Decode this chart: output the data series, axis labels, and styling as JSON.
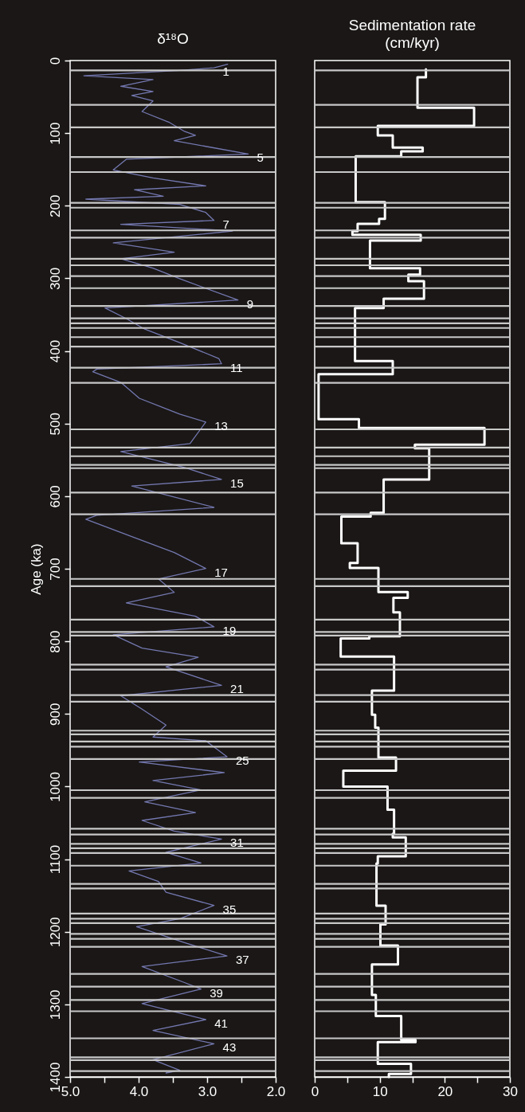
{
  "chart_data": [
    {
      "type": "line",
      "title": "δ¹⁸O",
      "ylabel": "Age (ka)",
      "orientation": "horizontal",
      "xlim": [
        5,
        2
      ],
      "xticks": [
        {
          "value": 5,
          "label": "5.0"
        },
        {
          "value": 4.5,
          "label": null
        },
        {
          "value": 4,
          "label": "4.0"
        },
        {
          "value": 3.5,
          "label": null
        },
        {
          "value": 3,
          "label": "3.0"
        },
        {
          "value": 2.5,
          "label": null
        },
        {
          "value": 2,
          "label": "2.0"
        }
      ],
      "ylim": [
        1400,
        0
      ],
      "yticks": [
        0,
        100,
        200,
        300,
        400,
        500,
        600,
        700,
        800,
        900,
        1000,
        1100,
        1200,
        1300,
        1400
      ],
      "marker": "none",
      "series": [
        {
          "color": "#7478b0",
          "x": [
            5,
            10,
            13.5,
            20.9,
            26.3,
            35.4,
            42.7,
            48.2,
            55.6,
            70.2,
            84.8,
            97.6,
            103,
            110.5,
            119.6,
            128.8,
            136,
            150.7,
            161.7,
            172.6,
            178,
            187,
            190.9,
            198.2,
            209.2,
            220.2,
            225.6,
            234.8,
            251.2,
            264,
            273,
            286,
            300.6,
            329.9,
            340.9,
            355.5,
            370,
            388.5,
            410.4,
            417.7,
            425,
            428.7,
            443.3,
            465.2,
            487,
            498,
            527.7,
            538.6,
            560.6,
            577,
            586,
            615.5,
            626.4,
            631.9,
            655.7,
            677.6,
            699.6,
            714,
            732.5,
            747,
            765.4,
            780,
            791,
            809.3,
            822,
            835,
            860.6,
            875,
            893.4,
            915.3,
            931.8,
            937,
            959,
            966.2,
            980.8,
            991.8,
            1004.6,
            1021,
            1035.8,
            1046.7,
            1061.4,
            1072.4,
            1090.6,
            1105.3,
            1116.3,
            1130.9,
            1145.5,
            1163.8,
            1182,
            1193,
            1215,
            1233.3,
            1248,
            1270,
            1279,
            1299,
            1321,
            1336,
            1354.3,
            1376.2,
            1390.9,
            1394.5
          ],
          "values": [
            2.7,
            2.9,
            3.4,
            4.8,
            3.79,
            4.26,
            3.79,
            4.1,
            3.79,
            3.95,
            3.56,
            3.33,
            3.17,
            3.48,
            2.94,
            2.4,
            4.18,
            4.37,
            3.79,
            3.02,
            4.06,
            3.64,
            4.77,
            3.4,
            3.02,
            2.9,
            4.26,
            2.63,
            4.37,
            3.48,
            4.26,
            3.79,
            3.4,
            2.55,
            4.49,
            4.18,
            3.91,
            3.4,
            2.83,
            2.79,
            4.61,
            4.67,
            4.26,
            3.99,
            3.4,
            3.02,
            3.25,
            4.26,
            3.33,
            2.79,
            4.1,
            2.9,
            4.61,
            4.77,
            4.1,
            3.48,
            3.02,
            3.71,
            3.48,
            4.18,
            3.17,
            2.9,
            4.37,
            3.95,
            3.13,
            3.6,
            2.79,
            4.26,
            3.95,
            3.6,
            3.79,
            3.02,
            2.71,
            3.99,
            2.75,
            3.79,
            3.09,
            3.91,
            3.17,
            3.95,
            3.48,
            2.79,
            3.6,
            3.09,
            4.14,
            3.71,
            3.6,
            2.9,
            3.4,
            4.03,
            3.33,
            2.71,
            3.95,
            3.33,
            3.09,
            3.95,
            3.02,
            3.79,
            2.9,
            3.79,
            3.4,
            3.6
          ]
        }
      ],
      "annotations": [
        {
          "text": "1",
          "x": 2.9,
          "y": 10
        },
        {
          "text": "5",
          "x": 2.4,
          "y": 128.8
        },
        {
          "text": "7",
          "x": 2.9,
          "y": 220.2
        },
        {
          "text": "9",
          "x": 2.55,
          "y": 329.9
        },
        {
          "text": "11",
          "x": 2.79,
          "y": 417.7
        },
        {
          "text": "13",
          "x": 3.02,
          "y": 498
        },
        {
          "text": "15",
          "x": 2.79,
          "y": 577
        },
        {
          "text": "17",
          "x": 3.02,
          "y": 699.6
        },
        {
          "text": "19",
          "x": 2.9,
          "y": 780
        },
        {
          "text": "21",
          "x": 2.79,
          "y": 860.6
        },
        {
          "text": "25",
          "x": 2.71,
          "y": 959
        },
        {
          "text": "31",
          "x": 2.79,
          "y": 1072.4
        },
        {
          "text": "35",
          "x": 2.9,
          "y": 1163.8
        },
        {
          "text": "37",
          "x": 2.71,
          "y": 1233.3
        },
        {
          "text": "39",
          "x": 3.09,
          "y": 1279
        },
        {
          "text": "41",
          "x": 3.02,
          "y": 1321
        },
        {
          "text": "43",
          "x": 2.9,
          "y": 1354.3
        }
      ],
      "ref_lines": [
        {
          "axis": "y",
          "value": 13.5,
          "color": "#c8c8c8"
        },
        {
          "axis": "y",
          "value": 61,
          "color": "#c8c8c8"
        },
        {
          "axis": "y",
          "value": 92,
          "color": "#c8c8c8"
        },
        {
          "axis": "y",
          "value": 133,
          "color": "#c8c8c8"
        },
        {
          "axis": "y",
          "value": 153.6,
          "color": "#c8c8c8"
        },
        {
          "axis": "y",
          "value": 196,
          "color": "#c8c8c8"
        },
        {
          "axis": "y",
          "value": 202.7,
          "color": "#c8c8c8"
        },
        {
          "axis": "y",
          "value": 234,
          "color": "#c8c8c8"
        },
        {
          "axis": "y",
          "value": 244,
          "color": "#c8c8c8"
        },
        {
          "axis": "y",
          "value": 273,
          "color": "#c8c8c8"
        },
        {
          "axis": "y",
          "value": 282,
          "color": "#c8c8c8"
        },
        {
          "axis": "y",
          "value": 297,
          "color": "#c8c8c8"
        },
        {
          "axis": "y",
          "value": 313.5,
          "color": "#c8c8c8"
        },
        {
          "axis": "y",
          "value": 338,
          "color": "#c8c8c8"
        },
        {
          "axis": "y",
          "value": 355,
          "color": "#c8c8c8"
        },
        {
          "axis": "y",
          "value": 362,
          "color": "#c8c8c8"
        },
        {
          "axis": "y",
          "value": 368.4,
          "color": "#c8c8c8"
        },
        {
          "axis": "y",
          "value": 381,
          "color": "#c8c8c8"
        },
        {
          "axis": "y",
          "value": 394,
          "color": "#c8c8c8"
        },
        {
          "axis": "y",
          "value": 423,
          "color": "#c8c8c8"
        },
        {
          "axis": "y",
          "value": 444,
          "color": "#c8c8c8"
        },
        {
          "axis": "y",
          "value": 508,
          "color": "#c8c8c8"
        },
        {
          "axis": "y",
          "value": 533,
          "color": "#c8c8c8"
        },
        {
          "axis": "y",
          "value": 545,
          "color": "#c8c8c8"
        },
        {
          "axis": "y",
          "value": 557,
          "color": "#c8c8c8"
        },
        {
          "axis": "y",
          "value": 561.5,
          "color": "#c8c8c8"
        },
        {
          "axis": "y",
          "value": 595,
          "color": "#c8c8c8"
        },
        {
          "axis": "y",
          "value": 625,
          "color": "#c8c8c8"
        },
        {
          "axis": "y",
          "value": 714,
          "color": "#c8c8c8"
        },
        {
          "axis": "y",
          "value": 724,
          "color": "#c8c8c8"
        },
        {
          "axis": "y",
          "value": 770,
          "color": "#c8c8c8"
        },
        {
          "axis": "y",
          "value": 787,
          "color": "#c8c8c8"
        },
        {
          "axis": "y",
          "value": 792,
          "color": "#c8c8c8"
        },
        {
          "axis": "y",
          "value": 832,
          "color": "#c8c8c8"
        },
        {
          "axis": "y",
          "value": 839,
          "color": "#c8c8c8"
        },
        {
          "axis": "y",
          "value": 874,
          "color": "#c8c8c8"
        },
        {
          "axis": "y",
          "value": 883,
          "color": "#c8c8c8"
        },
        {
          "axis": "y",
          "value": 923,
          "color": "#c8c8c8"
        },
        {
          "axis": "y",
          "value": 928,
          "color": "#c8c8c8"
        },
        {
          "axis": "y",
          "value": 938,
          "color": "#c8c8c8"
        },
        {
          "axis": "y",
          "value": 945,
          "color": "#c8c8c8"
        },
        {
          "axis": "y",
          "value": 962,
          "color": "#c8c8c8"
        },
        {
          "axis": "y",
          "value": 1005,
          "color": "#c8c8c8"
        },
        {
          "axis": "y",
          "value": 1015.5,
          "color": "#c8c8c8"
        },
        {
          "axis": "y",
          "value": 1058,
          "color": "#c8c8c8"
        },
        {
          "axis": "y",
          "value": 1066,
          "color": "#c8c8c8"
        },
        {
          "axis": "y",
          "value": 1079,
          "color": "#c8c8c8"
        },
        {
          "axis": "y",
          "value": 1085,
          "color": "#c8c8c8"
        },
        {
          "axis": "y",
          "value": 1091.6,
          "color": "#c8c8c8"
        },
        {
          "axis": "y",
          "value": 1109,
          "color": "#c8c8c8"
        },
        {
          "axis": "y",
          "value": 1134,
          "color": "#c8c8c8"
        },
        {
          "axis": "y",
          "value": 1140.4,
          "color": "#c8c8c8"
        },
        {
          "axis": "y",
          "value": 1175,
          "color": "#c8c8c8"
        },
        {
          "axis": "y",
          "value": 1182,
          "color": "#c8c8c8"
        },
        {
          "axis": "y",
          "value": 1188,
          "color": "#c8c8c8"
        },
        {
          "axis": "y",
          "value": 1203,
          "color": "#c8c8c8"
        },
        {
          "axis": "y",
          "value": 1209.7,
          "color": "#c8c8c8"
        },
        {
          "axis": "y",
          "value": 1220.7,
          "color": "#c8c8c8"
        },
        {
          "axis": "y",
          "value": 1258,
          "color": "#c8c8c8"
        },
        {
          "axis": "y",
          "value": 1275.6,
          "color": "#c8c8c8"
        },
        {
          "axis": "y",
          "value": 1294,
          "color": "#c8c8c8"
        },
        {
          "axis": "y",
          "value": 1309.5,
          "color": "#c8c8c8"
        },
        {
          "axis": "y",
          "value": 1346.8,
          "color": "#c8c8c8"
        },
        {
          "axis": "y",
          "value": 1373,
          "color": "#c8c8c8"
        },
        {
          "axis": "y",
          "value": 1376.9,
          "color": "#c8c8c8"
        },
        {
          "axis": "y",
          "value": 1392,
          "color": "#c8c8c8"
        }
      ]
    },
    {
      "type": "step",
      "title": "Sedimentation rate (cm/kyr)",
      "orientation": "horizontal",
      "xlim": [
        0,
        30
      ],
      "xticks": [
        0,
        {
          "value": 5,
          "label": null
        },
        10,
        {
          "value": 15,
          "label": null
        },
        20,
        {
          "value": 25,
          "label": null
        },
        30
      ],
      "ylim": [
        1400,
        0
      ],
      "tick_labels": "x",
      "marker": "none",
      "series": [
        {
          "color": "#ffffff",
          "x": [
            12,
            23,
            65,
            90,
            103,
            120,
            125,
            132,
            195,
            218,
            225,
            235,
            240,
            248,
            286,
            295,
            304,
            328,
            341,
            414,
            432,
            494,
            506,
            529,
            534,
            577,
            623,
            628,
            665,
            692,
            699,
            732,
            740,
            760,
            793,
            796,
            821,
            868,
            901,
            919,
            960,
            978,
            1000,
            1032,
            1065,
            1070,
            1096,
            1106,
            1164,
            1190,
            1219,
            1245,
            1287,
            1316,
            1349,
            1352,
            1382,
            1396,
            1400
          ],
          "values": [
            17.1,
            15.8,
            24.5,
            9.7,
            12,
            16.6,
            13.3,
            6.3,
            10.8,
            9.9,
            6.6,
            5.8,
            16.3,
            8.5,
            16.2,
            14.4,
            16.8,
            10.6,
            6.2,
            12,
            0.6,
            6.8,
            26.1,
            15.4,
            17.6,
            10.6,
            8.6,
            4.1,
            6.6,
            5.4,
            9.8,
            14.3,
            12.1,
            13.1,
            8.4,
            4,
            12.2,
            8.8,
            9.3,
            9.8,
            12.5,
            4.4,
            11.2,
            12.2,
            12,
            14,
            9.7,
            9.5,
            10.9,
            10.1,
            12.8,
            8.8,
            9.4,
            13.3,
            15.5,
            9.7,
            14.8,
            11.4,
            11.4
          ]
        }
      ],
      "ref_lines": [
        {
          "axis": "y",
          "value": 13.5,
          "color": "#c8c8c8"
        },
        {
          "axis": "y",
          "value": 61,
          "color": "#c8c8c8"
        },
        {
          "axis": "y",
          "value": 92,
          "color": "#c8c8c8"
        },
        {
          "axis": "y",
          "value": 133,
          "color": "#c8c8c8"
        },
        {
          "axis": "y",
          "value": 153.6,
          "color": "#c8c8c8"
        },
        {
          "axis": "y",
          "value": 196,
          "color": "#c8c8c8"
        },
        {
          "axis": "y",
          "value": 202.7,
          "color": "#c8c8c8"
        },
        {
          "axis": "y",
          "value": 234,
          "color": "#c8c8c8"
        },
        {
          "axis": "y",
          "value": 244,
          "color": "#c8c8c8"
        },
        {
          "axis": "y",
          "value": 273,
          "color": "#c8c8c8"
        },
        {
          "axis": "y",
          "value": 282,
          "color": "#c8c8c8"
        },
        {
          "axis": "y",
          "value": 297,
          "color": "#c8c8c8"
        },
        {
          "axis": "y",
          "value": 313.5,
          "color": "#c8c8c8"
        },
        {
          "axis": "y",
          "value": 338,
          "color": "#c8c8c8"
        },
        {
          "axis": "y",
          "value": 355,
          "color": "#c8c8c8"
        },
        {
          "axis": "y",
          "value": 362,
          "color": "#c8c8c8"
        },
        {
          "axis": "y",
          "value": 368.4,
          "color": "#c8c8c8"
        },
        {
          "axis": "y",
          "value": 381,
          "color": "#c8c8c8"
        },
        {
          "axis": "y",
          "value": 394,
          "color": "#c8c8c8"
        },
        {
          "axis": "y",
          "value": 423,
          "color": "#c8c8c8"
        },
        {
          "axis": "y",
          "value": 444,
          "color": "#c8c8c8"
        },
        {
          "axis": "y",
          "value": 508,
          "color": "#c8c8c8"
        },
        {
          "axis": "y",
          "value": 533,
          "color": "#c8c8c8"
        },
        {
          "axis": "y",
          "value": 545,
          "color": "#c8c8c8"
        },
        {
          "axis": "y",
          "value": 557,
          "color": "#c8c8c8"
        },
        {
          "axis": "y",
          "value": 561.5,
          "color": "#c8c8c8"
        },
        {
          "axis": "y",
          "value": 595,
          "color": "#c8c8c8"
        },
        {
          "axis": "y",
          "value": 625,
          "color": "#c8c8c8"
        },
        {
          "axis": "y",
          "value": 714,
          "color": "#c8c8c8"
        },
        {
          "axis": "y",
          "value": 724,
          "color": "#c8c8c8"
        },
        {
          "axis": "y",
          "value": 770,
          "color": "#c8c8c8"
        },
        {
          "axis": "y",
          "value": 787,
          "color": "#c8c8c8"
        },
        {
          "axis": "y",
          "value": 792,
          "color": "#c8c8c8"
        },
        {
          "axis": "y",
          "value": 832,
          "color": "#c8c8c8"
        },
        {
          "axis": "y",
          "value": 839,
          "color": "#c8c8c8"
        },
        {
          "axis": "y",
          "value": 874,
          "color": "#c8c8c8"
        },
        {
          "axis": "y",
          "value": 883,
          "color": "#c8c8c8"
        },
        {
          "axis": "y",
          "value": 923,
          "color": "#c8c8c8"
        },
        {
          "axis": "y",
          "value": 928,
          "color": "#c8c8c8"
        },
        {
          "axis": "y",
          "value": 938,
          "color": "#c8c8c8"
        },
        {
          "axis": "y",
          "value": 945,
          "color": "#c8c8c8"
        },
        {
          "axis": "y",
          "value": 962,
          "color": "#c8c8c8"
        },
        {
          "axis": "y",
          "value": 1005,
          "color": "#c8c8c8"
        },
        {
          "axis": "y",
          "value": 1015.5,
          "color": "#c8c8c8"
        },
        {
          "axis": "y",
          "value": 1058,
          "color": "#c8c8c8"
        },
        {
          "axis": "y",
          "value": 1066,
          "color": "#c8c8c8"
        },
        {
          "axis": "y",
          "value": 1079,
          "color": "#c8c8c8"
        },
        {
          "axis": "y",
          "value": 1085,
          "color": "#c8c8c8"
        },
        {
          "axis": "y",
          "value": 1091.6,
          "color": "#c8c8c8"
        },
        {
          "axis": "y",
          "value": 1109,
          "color": "#c8c8c8"
        },
        {
          "axis": "y",
          "value": 1134,
          "color": "#c8c8c8"
        },
        {
          "axis": "y",
          "value": 1140.4,
          "color": "#c8c8c8"
        },
        {
          "axis": "y",
          "value": 1175,
          "color": "#c8c8c8"
        },
        {
          "axis": "y",
          "value": 1182,
          "color": "#c8c8c8"
        },
        {
          "axis": "y",
          "value": 1188,
          "color": "#c8c8c8"
        },
        {
          "axis": "y",
          "value": 1203,
          "color": "#c8c8c8"
        },
        {
          "axis": "y",
          "value": 1209.7,
          "color": "#c8c8c8"
        },
        {
          "axis": "y",
          "value": 1220.7,
          "color": "#c8c8c8"
        },
        {
          "axis": "y",
          "value": 1258,
          "color": "#c8c8c8"
        },
        {
          "axis": "y",
          "value": 1275.6,
          "color": "#c8c8c8"
        },
        {
          "axis": "y",
          "value": 1294,
          "color": "#c8c8c8"
        },
        {
          "axis": "y",
          "value": 1309.5,
          "color": "#c8c8c8"
        },
        {
          "axis": "y",
          "value": 1346.8,
          "color": "#c8c8c8"
        },
        {
          "axis": "y",
          "value": 1373,
          "color": "#c8c8c8"
        },
        {
          "axis": "y",
          "value": 1376.9,
          "color": "#c8c8c8"
        },
        {
          "axis": "y",
          "value": 1392,
          "color": "#c8c8c8"
        }
      ]
    }
  ]
}
